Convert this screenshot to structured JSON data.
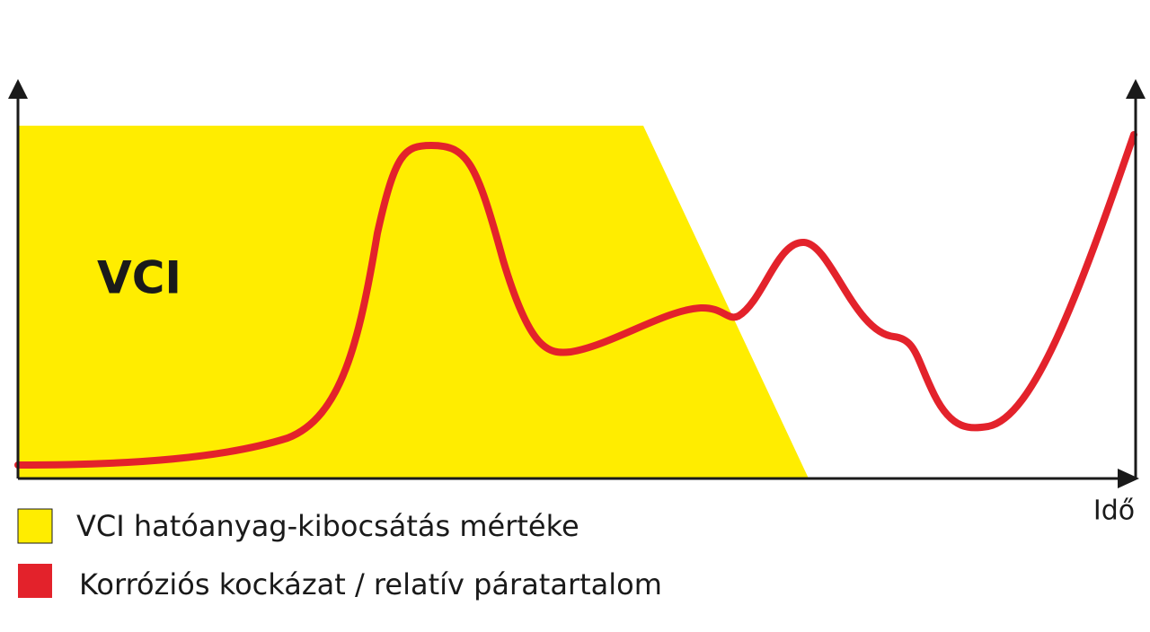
{
  "area_label": "VCI",
  "x_axis_label": "Idő",
  "legend": [
    "VCI hatóanyag-kibocsátás mértéke",
    "Korróziós kockázat / relatív páratartalom"
  ]
}
